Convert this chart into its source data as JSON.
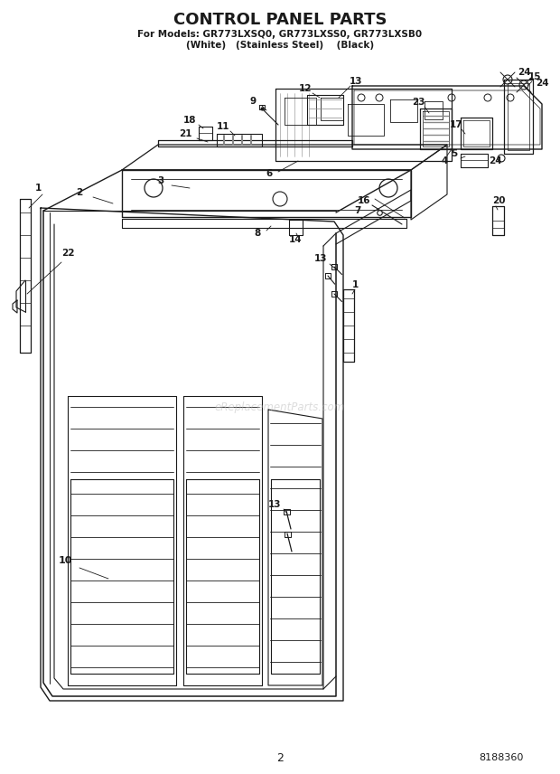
{
  "title": "CONTROL PANEL PARTS",
  "subtitle1": "For Models: GR773LXSQ0, GR773LXSS0, GR773LXSB0",
  "subtitle2": "(White)   (Stainless Steel)    (Black)",
  "page_number": "2",
  "doc_number": "8188360",
  "watermark": "eReplacementParts.com",
  "bg_color": "#ffffff",
  "lc": "#1a1a1a",
  "gray": "#888888",
  "lgray": "#cccccc"
}
